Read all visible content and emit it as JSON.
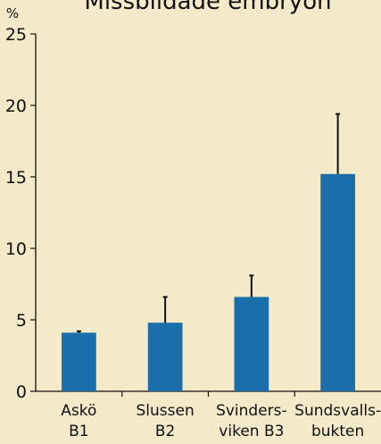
{
  "chart_data": {
    "type": "bar",
    "title": "Missbildade embryon",
    "ylabel": "%",
    "ylim": [
      0,
      25
    ],
    "yticks": [
      "0",
      "5",
      "10",
      "15",
      "20",
      "25"
    ],
    "categories": [
      [
        "Askö",
        "B1"
      ],
      [
        "Slussen",
        "B2"
      ],
      [
        "Svinders-",
        "viken B3"
      ],
      [
        "Sundsvalls-",
        "bukten"
      ]
    ],
    "values": [
      4.1,
      4.8,
      6.6,
      15.2
    ],
    "errors": [
      0.1,
      1.8,
      1.5,
      4.2
    ],
    "grid": false,
    "legend": "none",
    "colors": {
      "bar": "#1a6faa",
      "background": "#f4e9c9",
      "axis": "#111111"
    }
  }
}
